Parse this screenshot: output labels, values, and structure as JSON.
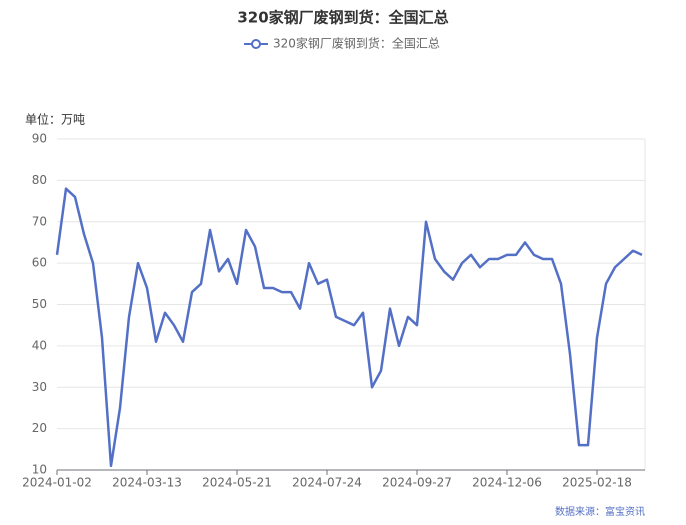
{
  "chart_data": {
    "type": "line",
    "title": "320家钢厂废钢到货：全国汇总",
    "unit": "单位：万吨",
    "source": "数据来源：富宝资讯",
    "categories": [
      "2024-01-02",
      null,
      null,
      null,
      null,
      null,
      null,
      null,
      null,
      null,
      "2024-03-13",
      null,
      null,
      null,
      null,
      null,
      null,
      null,
      null,
      null,
      "2024-05-21",
      null,
      null,
      null,
      null,
      null,
      null,
      null,
      null,
      null,
      "2024-07-24",
      null,
      null,
      null,
      null,
      null,
      null,
      null,
      null,
      null,
      "2024-09-27",
      null,
      null,
      null,
      null,
      null,
      null,
      null,
      null,
      null,
      "2024-12-06",
      null,
      null,
      null,
      null,
      null,
      null,
      null,
      null,
      null,
      "2025-02-18",
      null,
      null,
      null,
      null,
      null
    ],
    "series": [
      {
        "name": "320家钢厂废钢到货：全国汇总",
        "color": "#5470c6",
        "values": [
          62,
          78,
          76,
          67,
          60,
          42,
          11,
          25,
          47,
          60,
          54,
          41,
          48,
          45,
          41,
          53,
          55,
          68,
          58,
          61,
          55,
          68,
          64,
          54,
          54,
          53,
          53,
          49,
          60,
          55,
          56,
          47,
          46,
          45,
          48,
          30,
          34,
          49,
          40,
          47,
          45,
          70,
          61,
          58,
          56,
          60,
          62,
          59,
          61,
          61,
          62,
          62,
          65,
          62,
          61,
          61,
          55,
          38,
          16,
          16,
          42,
          55,
          59,
          61,
          63,
          62
        ]
      }
    ],
    "ylim": [
      10,
      90
    ],
    "yticks": [
      10,
      20,
      30,
      40,
      50,
      60,
      70,
      80,
      90
    ],
    "grid": true
  }
}
